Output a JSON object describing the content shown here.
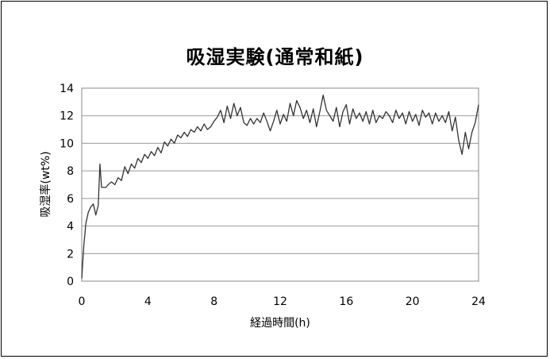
{
  "chart_data": {
    "type": "line",
    "title": "吸湿実験(通常和紙)",
    "xlabel": "経過時間(h)",
    "ylabel": "吸湿率(wt%)",
    "xlim": [
      0,
      24
    ],
    "ylim": [
      0,
      14
    ],
    "xticks": [
      0,
      4,
      8,
      12,
      16,
      20,
      24
    ],
    "yticks": [
      0,
      2,
      4,
      6,
      8,
      10,
      12,
      14
    ],
    "grid": "horizontal",
    "legend": "none",
    "line_color": "#333333",
    "x": [
      0.0,
      0.12,
      0.25,
      0.4,
      0.55,
      0.7,
      0.85,
      1.0,
      1.1,
      1.2,
      1.3,
      1.45,
      1.6,
      1.8,
      2.0,
      2.2,
      2.4,
      2.6,
      2.8,
      3.0,
      3.2,
      3.4,
      3.6,
      3.8,
      4.0,
      4.2,
      4.4,
      4.6,
      4.8,
      5.0,
      5.2,
      5.4,
      5.6,
      5.8,
      6.0,
      6.2,
      6.4,
      6.6,
      6.8,
      7.0,
      7.2,
      7.4,
      7.6,
      7.8,
      8.0,
      8.2,
      8.4,
      8.6,
      8.8,
      9.0,
      9.2,
      9.4,
      9.6,
      9.8,
      10.0,
      10.2,
      10.4,
      10.6,
      10.8,
      11.0,
      11.2,
      11.4,
      11.6,
      11.8,
      12.0,
      12.2,
      12.4,
      12.6,
      12.8,
      13.0,
      13.2,
      13.4,
      13.6,
      13.8,
      14.0,
      14.2,
      14.4,
      14.6,
      14.8,
      15.0,
      15.2,
      15.4,
      15.6,
      15.8,
      16.0,
      16.2,
      16.4,
      16.6,
      16.8,
      17.0,
      17.2,
      17.4,
      17.6,
      17.8,
      18.0,
      18.2,
      18.4,
      18.6,
      18.8,
      19.0,
      19.2,
      19.4,
      19.6,
      19.8,
      20.0,
      20.2,
      20.4,
      20.6,
      20.8,
      21.0,
      21.2,
      21.4,
      21.6,
      21.8,
      22.0,
      22.2,
      22.4,
      22.6,
      22.8,
      23.0,
      23.2,
      23.4,
      23.6,
      23.8,
      24.0
    ],
    "y": [
      0.2,
      2.5,
      4.2,
      5.0,
      5.4,
      5.6,
      4.8,
      5.5,
      8.5,
      6.8,
      6.8,
      6.8,
      7.0,
      7.2,
      7.0,
      7.5,
      7.3,
      8.3,
      7.8,
      8.5,
      8.2,
      8.9,
      8.6,
      9.2,
      8.9,
      9.4,
      9.1,
      9.7,
      9.3,
      10.1,
      9.8,
      10.3,
      10.0,
      10.6,
      10.4,
      10.8,
      10.5,
      11.0,
      10.8,
      11.2,
      10.9,
      11.4,
      11.0,
      11.2,
      11.6,
      11.9,
      12.4,
      11.5,
      12.7,
      11.8,
      12.9,
      12.0,
      12.6,
      11.5,
      11.3,
      11.8,
      11.4,
      11.8,
      11.5,
      12.2,
      11.6,
      10.9,
      11.6,
      12.4,
      11.4,
      12.1,
      11.6,
      12.9,
      12.0,
      13.1,
      12.6,
      11.8,
      12.4,
      11.5,
      12.5,
      11.2,
      12.3,
      13.5,
      12.4,
      12.0,
      11.6,
      12.6,
      11.2,
      12.3,
      12.8,
      11.4,
      12.5,
      11.8,
      12.2,
      11.6,
      12.3,
      11.4,
      12.4,
      11.5,
      12.0,
      11.8,
      12.3,
      12.0,
      11.5,
      12.4,
      11.8,
      12.2,
      11.4,
      12.3,
      11.6,
      12.1,
      11.3,
      12.4,
      11.9,
      12.2,
      11.4,
      12.2,
      11.6,
      12.0,
      11.5,
      12.3,
      10.9,
      11.9,
      10.2,
      9.2,
      10.8,
      9.6,
      10.8,
      11.5,
      12.8
    ]
  }
}
